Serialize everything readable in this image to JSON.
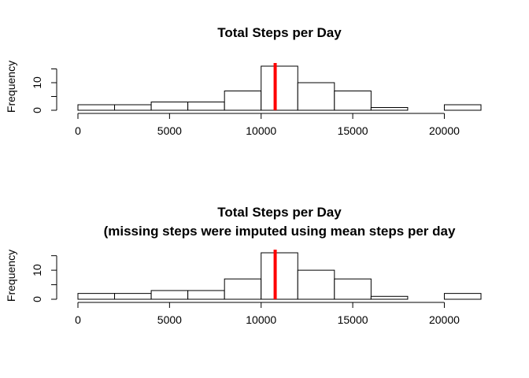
{
  "chart_data": [
    {
      "type": "bar",
      "title": "Total Steps per Day",
      "subtitle": "",
      "ylabel": "Frequency",
      "xlabel": "",
      "bin_edges": [
        0,
        2000,
        4000,
        6000,
        8000,
        10000,
        12000,
        14000,
        16000,
        18000,
        20000,
        22000
      ],
      "values": [
        2,
        2,
        3,
        3,
        7,
        16,
        10,
        7,
        1,
        0,
        2
      ],
      "x_ticks": [
        0,
        5000,
        10000,
        15000,
        20000
      ],
      "x_tick_labels": [
        "0",
        "5000",
        "10000",
        "15000",
        "20000"
      ],
      "y_ticks": [
        0,
        5,
        10,
        15
      ],
      "y_tick_labels": [
        "0",
        "",
        "10",
        ""
      ],
      "mean_line": {
        "value": 10766,
        "color": "#ff0000"
      },
      "bar_color": "#ffffff",
      "grid": false
    },
    {
      "type": "bar",
      "title": "Total Steps per Day",
      "subtitle": "(missing steps were imputed using mean steps per day",
      "ylabel": "Frequency",
      "xlabel": "",
      "bin_edges": [
        0,
        2000,
        4000,
        6000,
        8000,
        10000,
        12000,
        14000,
        16000,
        18000,
        20000,
        22000
      ],
      "values": [
        2,
        2,
        3,
        3,
        7,
        16,
        10,
        7,
        1,
        0,
        2
      ],
      "x_ticks": [
        0,
        5000,
        10000,
        15000,
        20000
      ],
      "x_tick_labels": [
        "0",
        "5000",
        "10000",
        "15000",
        "20000"
      ],
      "y_ticks": [
        0,
        5,
        10,
        15
      ],
      "y_tick_labels": [
        "0",
        "",
        "10",
        ""
      ],
      "mean_line": {
        "value": 10766,
        "color": "#ff0000"
      },
      "bar_color": "#ffffff",
      "grid": false
    }
  ]
}
